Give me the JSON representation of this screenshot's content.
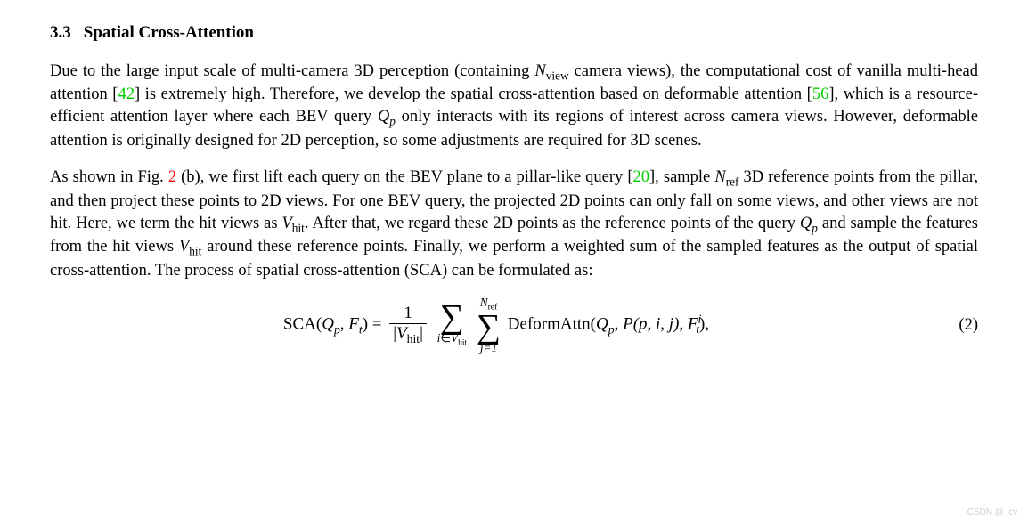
{
  "section": {
    "number": "3.3",
    "title": "Spatial Cross-Attention"
  },
  "para1": {
    "t1": "Due to the large input scale of multi-camera 3D perception (containing ",
    "Nview": "N",
    "Nview_sub": "view",
    "t2": " camera views), the computational cost of vanilla multi-head attention [",
    "c42": "42",
    "t3": "] is extremely high. Therefore, we develop the spatial cross-attention based on deformable attention [",
    "c56": "56",
    "t4": "], which is a resource-efficient attention layer where each BEV query ",
    "Qp": "Q",
    "Qp_sub": "p",
    "t5": " only interacts with its regions of interest across camera views. However, deformable attention is originally designed for 2D perception, so some adjustments are required for 3D scenes."
  },
  "para2": {
    "t1": "As shown in Fig. ",
    "fig2": "2",
    "t2": " (b), we first lift each query on the BEV plane to a pillar-like query [",
    "c20": "20",
    "t3": "], sample ",
    "Nref": "N",
    "Nref_sub": "ref",
    "t4": " 3D reference points from the pillar, and then project these points to 2D views. For one BEV query, the projected 2D points can only fall on some views, and other views are not hit. Here, we term the hit views as ",
    "Vhit1": "V",
    "Vhit1_sub": "hit",
    "t5": ". After that, we regard these 2D points as the reference points of the query ",
    "Qp": "Q",
    "Qp_sub": "p",
    "t6": " and sample the features from the hit views ",
    "Vhit2": "V",
    "Vhit2_sub": "hit",
    "t7": " around these reference points. Finally, we perform a weighted sum of the sampled features as the output of spatial cross-attention. The process of spatial cross-attention (SCA) can be formulated as:"
  },
  "eq": {
    "lhs_sca": "SCA(",
    "Qp": "Q",
    "Qp_sub": "p",
    "comma1": ", ",
    "Ft": "F",
    "Ft_sub": "t",
    "rhs_eq": ") = ",
    "frac_num": "1",
    "frac_den_open": "|",
    "Vhit": "V",
    "Vhit_sub": "hit",
    "frac_den_close": "|",
    "sum1_top": "",
    "sum1_sym": "∑",
    "sum1_bot_i": "i",
    "sum1_bot_in": "∈",
    "sum1_bot_V": "V",
    "sum1_bot_Vsub": "hit",
    "sum2_top_N": "N",
    "sum2_top_sub": "ref",
    "sum2_sym": "∑",
    "sum2_bot": "j=1",
    "deform": "DeformAttn(",
    "Qp2": "Q",
    "Qp2_sub": "p",
    "comma2": ", ",
    "Pcal": "P",
    "pij": "(p, i, j), ",
    "Ft2": "F",
    "Ft2_sup": "i",
    "Ft2_sub": "t",
    "close": "),",
    "number": "(2)"
  },
  "watermark": "CSDN @_cv_"
}
